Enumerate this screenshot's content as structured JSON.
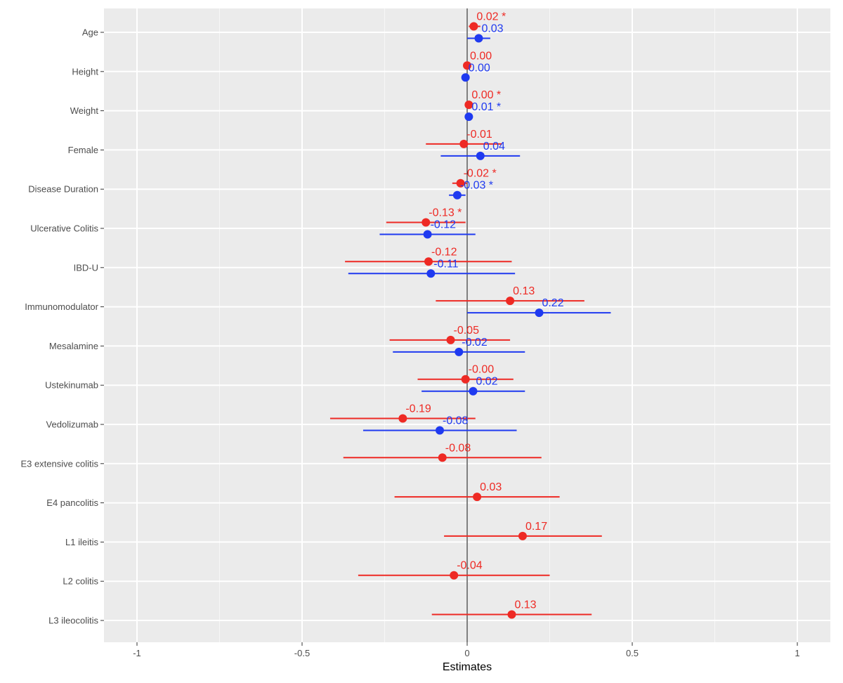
{
  "chart_data": {
    "type": "forest",
    "xlabel": "Estimates",
    "xlim": [
      -1.1,
      1.1
    ],
    "xticks": [
      {
        "value": -1,
        "label": "-1"
      },
      {
        "value": -0.5,
        "label": "-0.5"
      },
      {
        "value": 0,
        "label": "0"
      },
      {
        "value": 0.5,
        "label": "0.5"
      },
      {
        "value": 1,
        "label": "1"
      }
    ],
    "categories": [
      "Age",
      "Height",
      "Weight",
      "Female",
      "Disease Duration",
      "Ulcerative Colitis",
      "IBD-U",
      "Immunomodulator",
      "Mesalamine",
      "Ustekinumab",
      "Vedolizumab",
      "E3 extensive colitis",
      "E4 pancolitis",
      "L1 ileitis",
      "L2 colitis",
      "L3 ileocolitis"
    ],
    "grid": true,
    "legend": "none",
    "series": [
      {
        "color": "#ee2a24",
        "points": [
          {
            "category": "Age",
            "estimate": 0.02,
            "low": 0.005,
            "high": 0.04,
            "label": "0.02 *"
          },
          {
            "category": "Height",
            "estimate": 0.0,
            "low": -0.005,
            "high": 0.005,
            "label": "0.00"
          },
          {
            "category": "Weight",
            "estimate": 0.005,
            "low": 0.0,
            "high": 0.01,
            "label": "0.00 *"
          },
          {
            "category": "Female",
            "estimate": -0.01,
            "low": -0.125,
            "high": 0.105,
            "label": "-0.01"
          },
          {
            "category": "Disease Duration",
            "estimate": -0.02,
            "low": -0.045,
            "high": 0.0,
            "label": "-0.02 *"
          },
          {
            "category": "Ulcerative Colitis",
            "estimate": -0.125,
            "low": -0.245,
            "high": -0.005,
            "label": "-0.13 *"
          },
          {
            "category": "IBD-U",
            "estimate": -0.117,
            "low": -0.37,
            "high": 0.135,
            "label": "-0.12"
          },
          {
            "category": "Immunomodulator",
            "estimate": 0.13,
            "low": -0.095,
            "high": 0.355,
            "label": "0.13"
          },
          {
            "category": "Mesalamine",
            "estimate": -0.05,
            "low": -0.235,
            "high": 0.13,
            "label": "-0.05"
          },
          {
            "category": "Ustekinumab",
            "estimate": -0.005,
            "low": -0.15,
            "high": 0.14,
            "label": "-0.00"
          },
          {
            "category": "Vedolizumab",
            "estimate": -0.195,
            "low": -0.415,
            "high": 0.025,
            "label": "-0.19"
          },
          {
            "category": "E3 extensive colitis",
            "estimate": -0.075,
            "low": -0.375,
            "high": 0.225,
            "label": "-0.08"
          },
          {
            "category": "E4 pancolitis",
            "estimate": 0.03,
            "low": -0.22,
            "high": 0.28,
            "label": "0.03"
          },
          {
            "category": "L1 ileitis",
            "estimate": 0.168,
            "low": -0.07,
            "high": 0.408,
            "label": "0.17"
          },
          {
            "category": "L2 colitis",
            "estimate": -0.04,
            "low": -0.33,
            "high": 0.25,
            "label": "-0.04"
          },
          {
            "category": "L3 ileocolitis",
            "estimate": 0.135,
            "low": -0.107,
            "high": 0.377,
            "label": "0.13"
          }
        ]
      },
      {
        "color": "#1f3af0",
        "points": [
          {
            "category": "Age",
            "estimate": 0.035,
            "low": 0.0,
            "high": 0.07,
            "label": "0.03"
          },
          {
            "category": "Height",
            "estimate": -0.005,
            "low": -0.008,
            "high": 0.0,
            "label": "0.00"
          },
          {
            "category": "Weight",
            "estimate": 0.005,
            "low": 0.002,
            "high": 0.008,
            "label": "0.01 *"
          },
          {
            "category": "Female",
            "estimate": 0.04,
            "low": -0.08,
            "high": 0.16,
            "label": "0.04"
          },
          {
            "category": "Disease Duration",
            "estimate": -0.03,
            "low": -0.055,
            "high": -0.005,
            "label": "-0.03 *"
          },
          {
            "category": "Ulcerative Colitis",
            "estimate": -0.12,
            "low": -0.265,
            "high": 0.025,
            "label": "-0.12"
          },
          {
            "category": "IBD-U",
            "estimate": -0.11,
            "low": -0.36,
            "high": 0.145,
            "label": "-0.11"
          },
          {
            "category": "Immunomodulator",
            "estimate": 0.218,
            "low": 0.0,
            "high": 0.435,
            "label": "0.22"
          },
          {
            "category": "Mesalamine",
            "estimate": -0.025,
            "low": -0.225,
            "high": 0.175,
            "label": "-0.02"
          },
          {
            "category": "Ustekinumab",
            "estimate": 0.018,
            "low": -0.138,
            "high": 0.175,
            "label": "0.02"
          },
          {
            "category": "Vedolizumab",
            "estimate": -0.083,
            "low": -0.315,
            "high": 0.15,
            "label": "-0.08"
          }
        ]
      }
    ]
  }
}
